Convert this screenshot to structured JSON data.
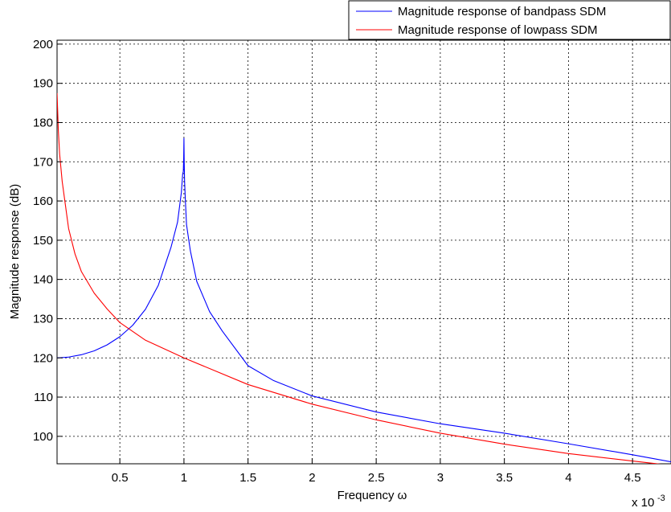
{
  "chart_data": {
    "type": "line",
    "xlabel": "Frequency ω",
    "ylabel": "Magnitude response (dB)",
    "x_multiplier_label": "x 10",
    "x_multiplier_exponent": "-3",
    "xlim": [
      1e-05,
      0.0048
    ],
    "ylim": [
      93,
      201
    ],
    "grid": true,
    "legend_position": "top-right, outside above plot",
    "x_ticks": [
      0.0005,
      0.001,
      0.0015,
      0.002,
      0.0025,
      0.003,
      0.0035,
      0.004,
      0.0045
    ],
    "x_tick_labels": [
      "0.5",
      "1",
      "1.5",
      "2",
      "2.5",
      "3",
      "3.5",
      "4",
      "4.5"
    ],
    "y_ticks": [
      100,
      110,
      120,
      130,
      140,
      150,
      160,
      170,
      180,
      190,
      200
    ],
    "y_tick_labels": [
      "100",
      "110",
      "120",
      "130",
      "140",
      "150",
      "160",
      "170",
      "180",
      "190",
      "200"
    ],
    "series": [
      {
        "name": "Magnitude response of bandpass SDM",
        "color": "#0000ff",
        "x": [
          1e-05,
          0.0001,
          0.0002,
          0.0003,
          0.0004,
          0.0005,
          0.0006,
          0.0007,
          0.0008,
          0.0009,
          0.00095,
          0.00098,
          0.00099,
          0.000995,
          0.000998,
          0.001,
          0.001002,
          0.001005,
          0.00101,
          0.00102,
          0.00105,
          0.0011,
          0.0012,
          0.0013,
          0.0015,
          0.0017,
          0.002,
          0.0025,
          0.003,
          0.0035,
          0.004,
          0.0045,
          0.0048
        ],
        "y": [
          120,
          120.2,
          120.8,
          121.8,
          123.3,
          125.4,
          128.3,
          132.4,
          138.5,
          148.3,
          154.6,
          162.2,
          166.9,
          167.5,
          171,
          176,
          170,
          165,
          161,
          154,
          147.3,
          139.5,
          131.8,
          126.8,
          118,
          114.2,
          110.3,
          106.2,
          103.2,
          100.8,
          98.1,
          95.3,
          93.5
        ]
      },
      {
        "name": "Magnitude response of lowpass SDM",
        "color": "#ff0000",
        "x": [
          1e-05,
          2e-05,
          3e-05,
          5e-05,
          0.0001,
          0.00015,
          0.0002,
          0.0003,
          0.0004,
          0.0005,
          0.0007,
          0.001,
          0.0015,
          0.002,
          0.0025,
          0.003,
          0.0035,
          0.004,
          0.0045,
          0.0048
        ],
        "y": [
          187.5,
          178,
          172,
          165,
          153,
          146.5,
          142,
          136.5,
          132.5,
          129,
          124.5,
          120,
          113.2,
          108.2,
          104.2,
          100.8,
          98,
          95.6,
          93.7,
          92.6
        ]
      }
    ]
  }
}
